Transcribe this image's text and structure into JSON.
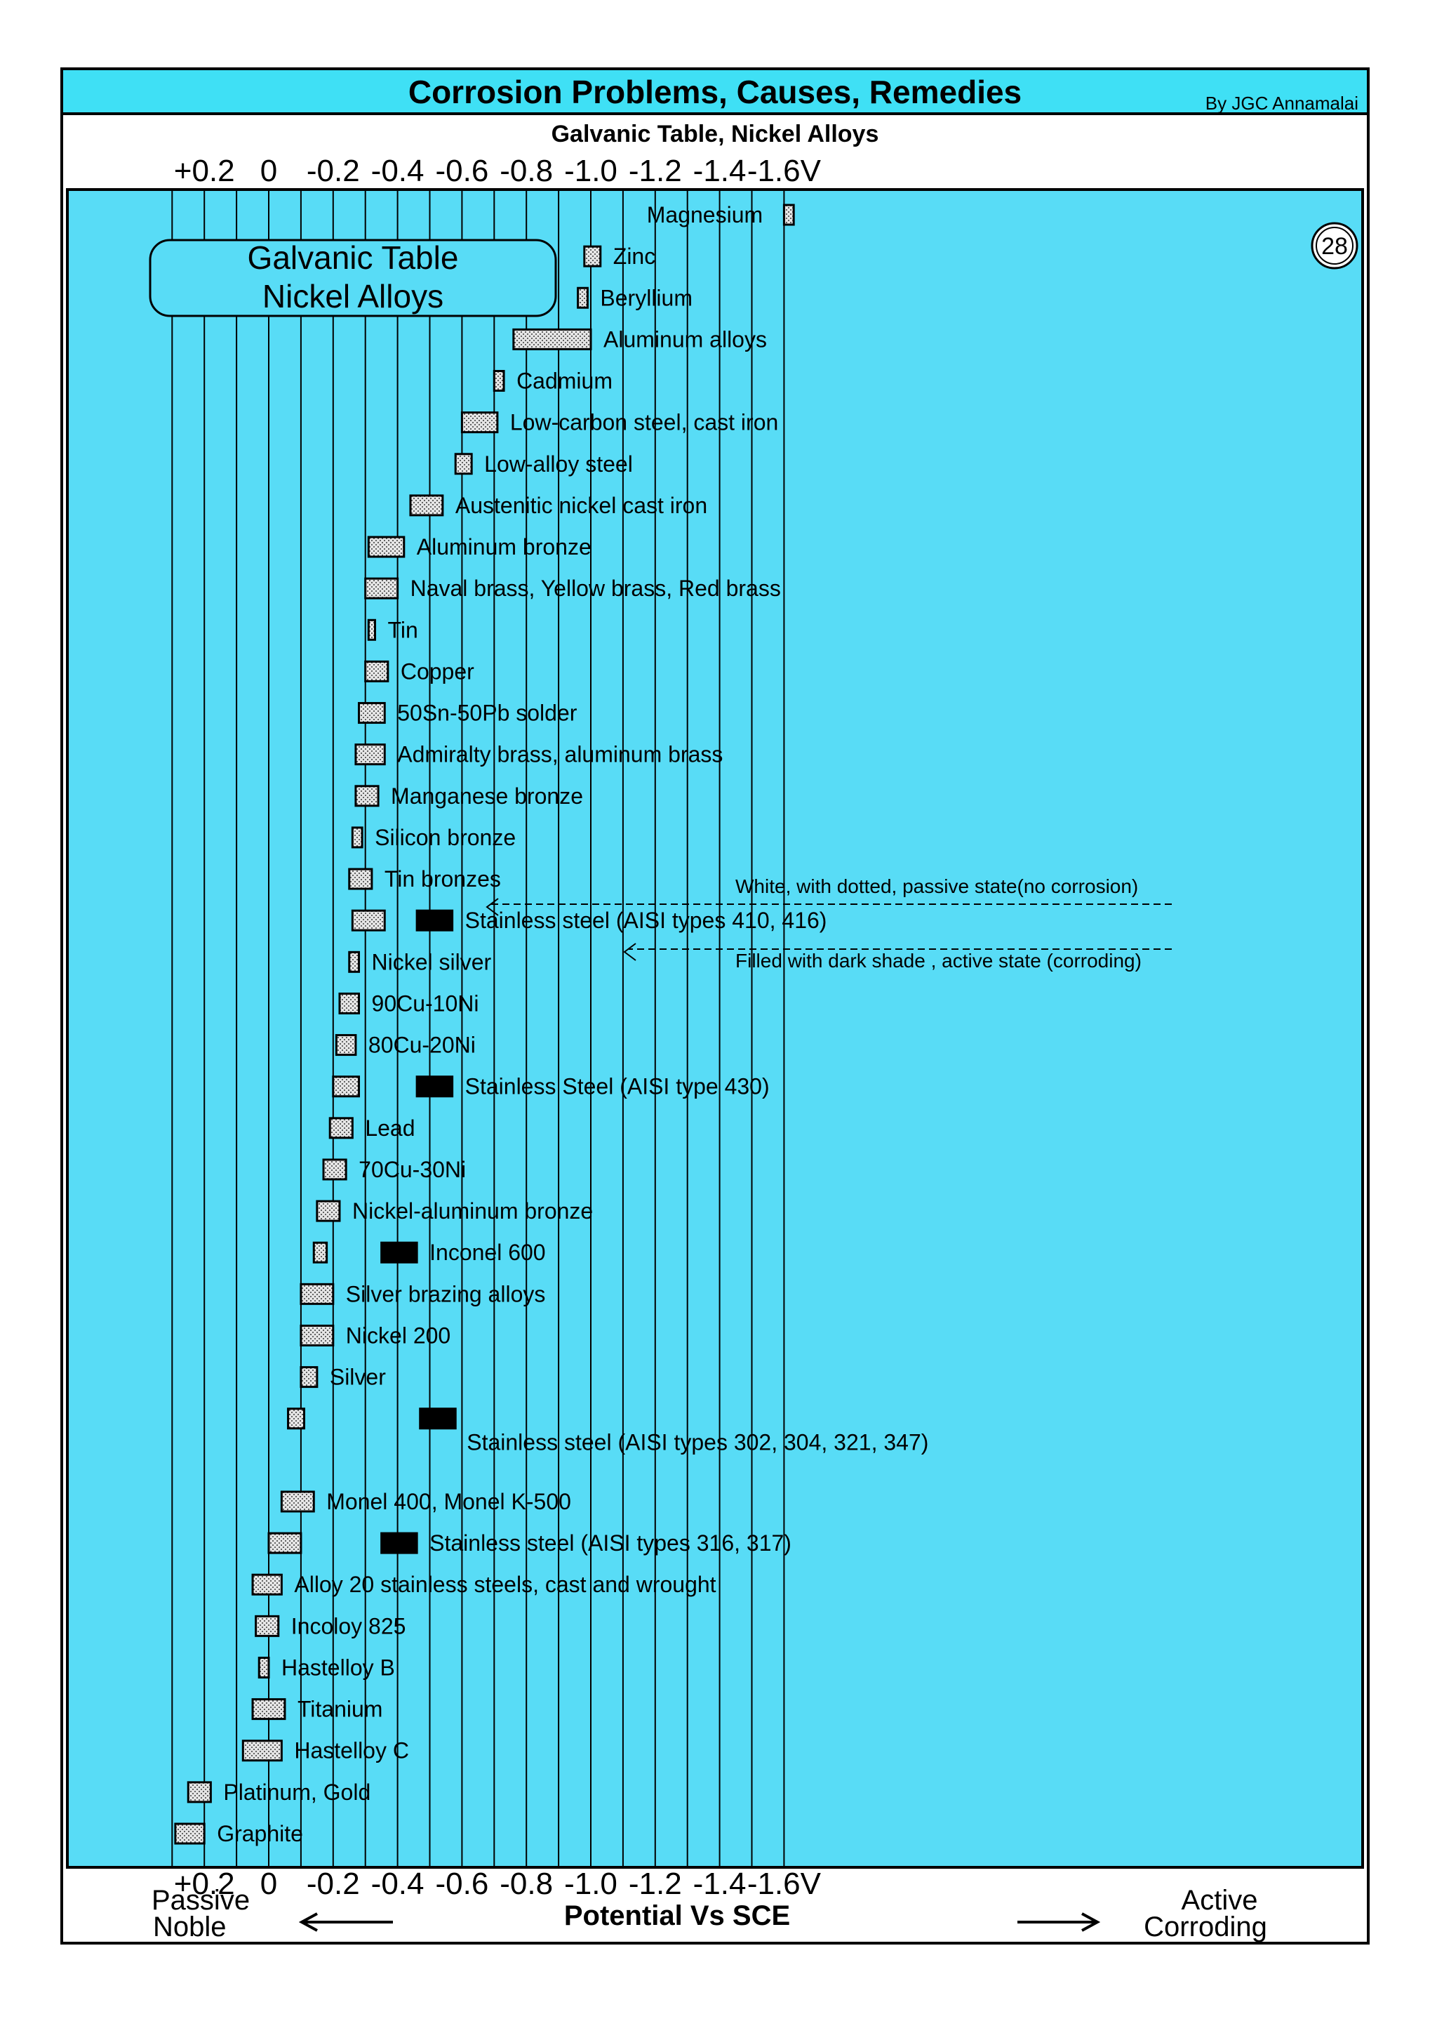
{
  "header": {
    "title": "Corrosion Problems,  Causes, Remedies",
    "author": "By JGC Annamalai",
    "subtitle": "Galvanic Table, Nickel Alloys"
  },
  "badge": {
    "page_number": "28"
  },
  "colors": {
    "background": "#58dcf6",
    "passive_fill": "#d8d8d8",
    "active_fill": "#000000",
    "title_bar": "#3fe0f5"
  },
  "chart_data": {
    "type": "range-bar",
    "title": "Galvanic Table Nickel Alloys",
    "title_lines": [
      "Galvanic Table",
      "Nickel Alloys"
    ],
    "xlabel": "Potential Vs SCE",
    "x_ticks": [
      "+0.2",
      "0",
      "-0.2",
      "-0.4",
      "-0.6",
      "-0.8",
      "-1.0",
      "-1.2",
      "-1.4",
      "-1.6V"
    ],
    "x_tick_values": [
      0.2,
      0,
      -0.2,
      -0.4,
      -0.6,
      -0.8,
      -1.0,
      -1.2,
      -1.4,
      -1.6
    ],
    "xlim": [
      0.3,
      -1.7
    ],
    "grid": true,
    "axis_notes": {
      "left_top": "Passive",
      "left_bottom": "Noble",
      "right_top": "Active",
      "right_bottom": "Corroding"
    },
    "annotations": {
      "passive": "White, with dotted, passive state(no corrosion)",
      "active": "Filled with dark shade , active state (corroding)"
    },
    "rows": [
      {
        "label": "Magnesium",
        "passive": [
          -1.6,
          -1.63
        ]
      },
      {
        "label": "Zinc",
        "passive": [
          -0.98,
          -1.03
        ]
      },
      {
        "label": "Beryllium",
        "passive": [
          -0.96,
          -0.99
        ]
      },
      {
        "label": "Aluminum alloys",
        "passive": [
          -0.76,
          -1.0
        ]
      },
      {
        "label": "Cadmium",
        "passive": [
          -0.7,
          -0.73
        ]
      },
      {
        "label": "Low-carbon steel, cast iron",
        "passive": [
          -0.6,
          -0.71
        ]
      },
      {
        "label": "Low-alloy steel",
        "passive": [
          -0.58,
          -0.63
        ]
      },
      {
        "label": "Austenitic nickel cast iron",
        "passive": [
          -0.44,
          -0.54
        ]
      },
      {
        "label": "Aluminum bronze",
        "passive": [
          -0.31,
          -0.42
        ]
      },
      {
        "label": "Naval brass, Yellow brass, Red brass",
        "passive": [
          -0.3,
          -0.4
        ]
      },
      {
        "label": "Tin",
        "passive": [
          -0.31,
          -0.33
        ]
      },
      {
        "label": "Copper",
        "passive": [
          -0.3,
          -0.37
        ]
      },
      {
        "label": "50Sn-50Pb solder",
        "passive": [
          -0.28,
          -0.36
        ]
      },
      {
        "label": "Admiralty brass, aluminum brass",
        "passive": [
          -0.27,
          -0.36
        ]
      },
      {
        "label": "Manganese bronze",
        "passive": [
          -0.27,
          -0.34
        ]
      },
      {
        "label": "Silicon bronze",
        "passive": [
          -0.26,
          -0.29
        ]
      },
      {
        "label": "Tin bronzes",
        "passive": [
          -0.25,
          -0.32
        ]
      },
      {
        "label": "Stainless steel (AISI types 410, 416)",
        "passive": [
          -0.26,
          -0.36
        ],
        "active": [
          -0.46,
          -0.57
        ]
      },
      {
        "label": "Nickel silver",
        "passive": [
          -0.25,
          -0.28
        ]
      },
      {
        "label": "90Cu-10Ni",
        "passive": [
          -0.22,
          -0.28
        ]
      },
      {
        "label": "80Cu-20Ni",
        "passive": [
          -0.21,
          -0.27
        ]
      },
      {
        "label": "Stainless Steel (AISI type 430)",
        "passive": [
          -0.2,
          -0.28
        ],
        "active": [
          -0.46,
          -0.57
        ]
      },
      {
        "label": "Lead",
        "passive": [
          -0.19,
          -0.26
        ]
      },
      {
        "label": "70Cu-30Ni",
        "passive": [
          -0.17,
          -0.24
        ]
      },
      {
        "label": "Nickel-aluminum bronze",
        "passive": [
          -0.15,
          -0.22
        ]
      },
      {
        "label": "Inconel 600",
        "passive": [
          -0.14,
          -0.18
        ],
        "active": [
          -0.35,
          -0.46
        ]
      },
      {
        "label": "Silver brazing alloys",
        "passive": [
          -0.1,
          -0.2
        ]
      },
      {
        "label": "Nickel 200",
        "passive": [
          -0.1,
          -0.2
        ]
      },
      {
        "label": "Silver",
        "passive": [
          -0.1,
          -0.15
        ]
      },
      {
        "label": "",
        "passive": [
          -0.06,
          -0.11
        ],
        "active": [
          -0.47,
          -0.58
        ]
      },
      {
        "label": "Stainless steel (AISI types 302, 304, 321, 347)",
        "passive": [],
        "active": []
      },
      {
        "label": "Monel 400, Monel K-500",
        "passive": [
          -0.04,
          -0.14
        ]
      },
      {
        "label": "Stainless steel (AISI types 316, 317)",
        "passive": [
          0.0,
          -0.1
        ],
        "active": [
          -0.35,
          -0.46
        ]
      },
      {
        "label": "Alloy 20 stainless steels, cast and wrought",
        "passive": [
          0.05,
          -0.04
        ]
      },
      {
        "label": "Incoloy 825",
        "passive": [
          0.04,
          -0.03
        ]
      },
      {
        "label": "Hastelloy B",
        "passive": [
          0.03,
          0.0
        ]
      },
      {
        "label": "Titanium",
        "passive": [
          0.05,
          -0.05
        ]
      },
      {
        "label": "Hastelloy C",
        "passive": [
          0.08,
          -0.04
        ]
      },
      {
        "label": "Platinum, Gold",
        "passive": [
          0.25,
          0.18
        ]
      },
      {
        "label": "Graphite",
        "passive": [
          0.29,
          0.2
        ]
      }
    ]
  }
}
